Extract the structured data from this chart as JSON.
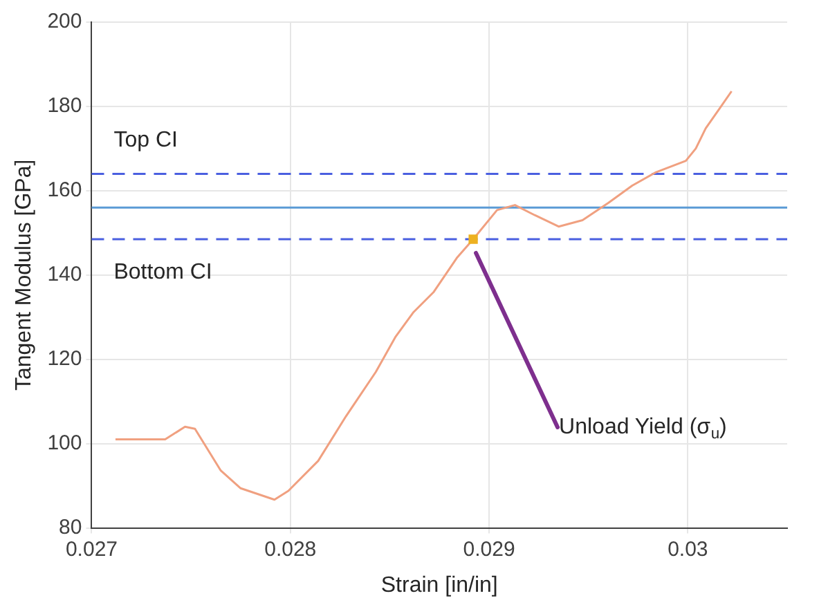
{
  "chart_data": {
    "type": "line",
    "xlabel": "Strain [in/in]",
    "ylabel": "Tangent Modulus [GPa]",
    "xlim": [
      0.027,
      0.0305
    ],
    "xticks": [
      0.027,
      0.028,
      0.029,
      0.03
    ],
    "ylim": [
      80,
      200
    ],
    "yticks": [
      80,
      100,
      120,
      140,
      160,
      180,
      200
    ],
    "grid": true,
    "legend": false,
    "series": [
      {
        "type": "line",
        "color": "#f0a080",
        "x": [
          0.02712,
          0.02737,
          0.02747,
          0.02752,
          0.02765,
          0.02775,
          0.02792,
          0.02799,
          0.02814,
          0.02828,
          0.02843,
          0.02853,
          0.02862,
          0.02872,
          0.02884,
          0.02892,
          0.02904,
          0.02913,
          0.02923,
          0.02935,
          0.02947,
          0.0296,
          0.02972,
          0.02984,
          0.02999,
          0.03004,
          0.03009,
          0.03016,
          0.03022
        ],
        "values": [
          101,
          101,
          104,
          103.5,
          93.6,
          89.4,
          86.7,
          88.8,
          95.9,
          106.5,
          117,
          125.4,
          131.2,
          135.9,
          144.2,
          148.5,
          155.4,
          156.6,
          154.2,
          151.5,
          153,
          157.1,
          161.2,
          164.4,
          167.1,
          170,
          174.8,
          179.5,
          183.6
        ]
      },
      {
        "type": "scatter",
        "color": "#edb120",
        "x": [
          0.02892
        ],
        "values": [
          148.5
        ]
      }
    ],
    "ref_lines": [
      {
        "axis": "y",
        "value": 164,
        "label": "Top CI",
        "color": "#4a5fe0",
        "line_style": "dashed"
      },
      {
        "axis": "y",
        "value": 156,
        "label": null,
        "color": "#5b9bd5",
        "line_style": "solid"
      },
      {
        "axis": "y",
        "value": 148.5,
        "label": "Bottom CI",
        "color": "#4a5fe0",
        "line_style": "dashed"
      }
    ],
    "annotations": [
      "Unload Yield (σ$_{u}$)"
    ]
  }
}
